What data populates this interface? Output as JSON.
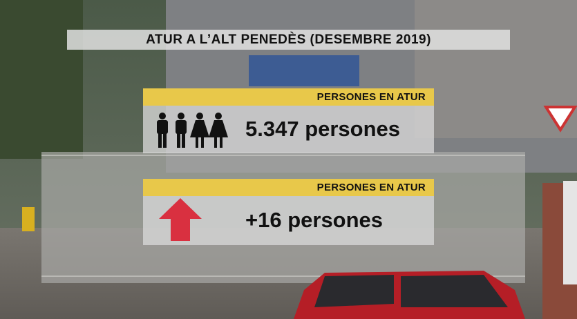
{
  "header": {
    "title": "ATUR A L’ALT PENEDÈS (DESEMBRE 2019)"
  },
  "panels": [
    {
      "label": "PERSONES EN ATUR",
      "value": "5.347 persones"
    },
    {
      "label": "PERSONES EN ATUR",
      "value": "+16 persones"
    }
  ]
}
